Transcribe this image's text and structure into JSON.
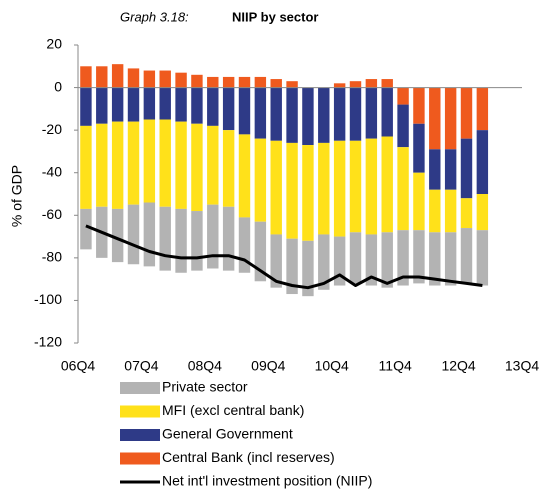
{
  "chart_data": {
    "type": "bar",
    "title_label": "Graph 3.18:",
    "title": "NIIP by sector",
    "y_label": "% of GDP",
    "stacked": true,
    "categories": [
      "06Q4",
      null,
      null,
      null,
      "07Q4",
      null,
      null,
      null,
      "08Q4",
      null,
      null,
      null,
      "09Q4",
      null,
      null,
      null,
      "10Q4",
      null,
      null,
      null,
      "11Q4",
      null,
      null,
      null,
      "12Q4",
      null,
      null,
      null,
      "13Q4"
    ],
    "series": [
      {
        "name": "Private sector",
        "color": "#b3b3b3",
        "type": "bar",
        "values": [
          -19,
          -24,
          -25,
          -28,
          -30,
          -30,
          -30,
          -28,
          -30,
          -30,
          -26,
          -28,
          -25,
          -26,
          -26,
          -26,
          -23,
          -24,
          -24,
          -26,
          -26,
          -25,
          -25,
          -25,
          -26,
          -26,
          null,
          null,
          null
        ]
      },
      {
        "name": "MFI (excl central bank)",
        "color": "#ffe11a",
        "type": "bar",
        "values": [
          -39,
          -39,
          -41,
          -39,
          -39,
          -41,
          -41,
          -41,
          -37,
          -36,
          -39,
          -39,
          -44,
          -45,
          -45,
          -43,
          -45,
          -43,
          -45,
          -45,
          -39,
          -27,
          -20,
          -20,
          -14,
          -17,
          null,
          null,
          null
        ]
      },
      {
        "name": "General Government",
        "color": "#2e3a87",
        "type": "bar",
        "values": [
          -18,
          -17,
          -16,
          -16,
          -15,
          -15,
          -16,
          -17,
          -18,
          -20,
          -22,
          -24,
          -25,
          -26,
          -27,
          -26,
          -25,
          -25,
          -24,
          -23,
          -20,
          -23,
          -19,
          -19,
          -28,
          -30,
          null,
          null,
          null
        ]
      },
      {
        "name": "Central Bank (incl reserves)",
        "color": "#ef5a1e",
        "type": "bar",
        "values": [
          10,
          10,
          11,
          9,
          8,
          8,
          7,
          6,
          5,
          5,
          5,
          5,
          4,
          3,
          0,
          0,
          2,
          3,
          4,
          4,
          -8,
          -17,
          -29,
          -29,
          -24,
          -20,
          null,
          null,
          null
        ]
      },
      {
        "name": "Net int'l investment position (NIIP)",
        "color": "#000000",
        "type": "line",
        "values": [
          -65,
          -68,
          -71,
          -74,
          -77,
          -79,
          -80,
          -80,
          -79,
          -79,
          -81,
          -86,
          -91,
          -93,
          -94,
          -92,
          -88,
          -93,
          -89,
          -92,
          -89,
          -89,
          -90,
          -91,
          -92,
          -93,
          null,
          null,
          null
        ]
      }
    ],
    "ylim": [
      -120,
      20
    ],
    "yticks": [
      -120,
      -100,
      -80,
      -60,
      -40,
      -20,
      0,
      20
    ]
  }
}
